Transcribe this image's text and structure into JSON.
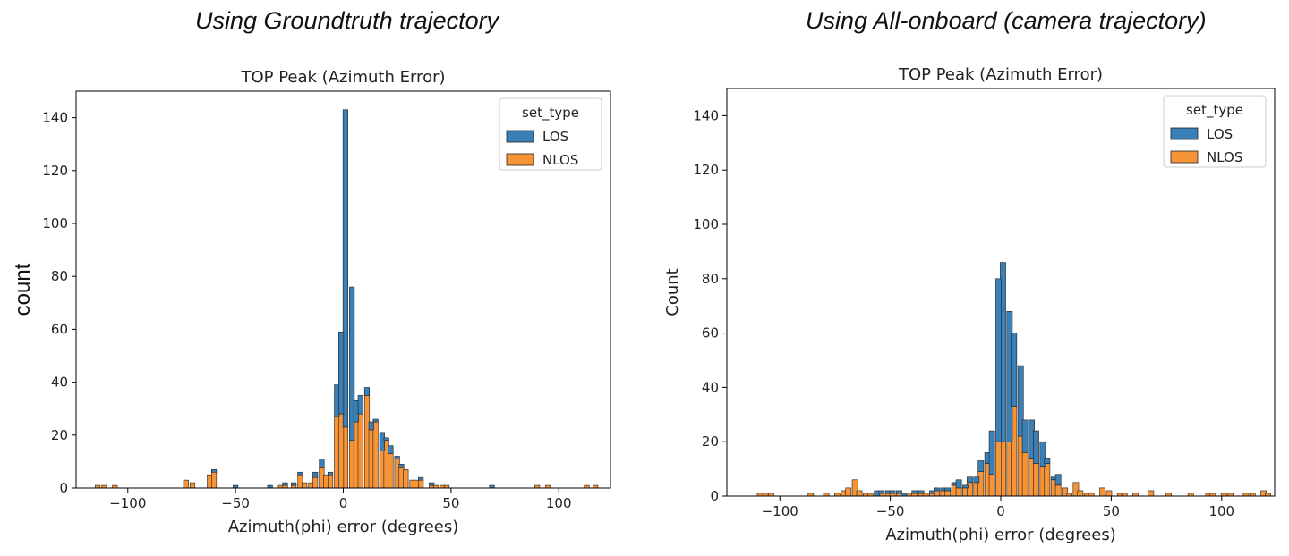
{
  "headings": {
    "left": "Using Groundtruth trajectory",
    "right": "Using All-onboard (camera trajectory)"
  },
  "outer_ylabel": "count",
  "colors": {
    "LOS": "#3a7fb6",
    "NLOS": "#f79437",
    "edge": "#222222"
  },
  "chart_data": [
    {
      "type": "bar",
      "stacking": "stacked histogram",
      "title": "TOP Peak (Azimuth Error)",
      "xlabel": "Azimuth(phi) error (degrees)",
      "ylabel": "",
      "xlim": [
        -124,
        124
      ],
      "ylim": [
        0,
        150
      ],
      "xticks": [
        -100,
        -50,
        0,
        50,
        100
      ],
      "xtick_labels": [
        "−100",
        "−50",
        "0",
        "50",
        "100"
      ],
      "yticks": [
        0,
        20,
        40,
        60,
        80,
        100,
        120,
        140
      ],
      "legend": {
        "title": "set_type",
        "entries": [
          "LOS",
          "NLOS"
        ],
        "placement": "top-right"
      },
      "bin_width": 2.3,
      "series": [
        {
          "name": "NLOS",
          "bins": [
            [
              -114,
              1
            ],
            [
              -111,
              1
            ],
            [
              -106,
              1
            ],
            [
              -73,
              3
            ],
            [
              -70,
              2
            ],
            [
              -62,
              5
            ],
            [
              -60,
              6
            ],
            [
              -29,
              1
            ],
            [
              -27,
              1
            ],
            [
              -23,
              1
            ],
            [
              -20,
              5
            ],
            [
              -18,
              2
            ],
            [
              -15,
              2
            ],
            [
              -13,
              4
            ],
            [
              -10,
              8
            ],
            [
              -8,
              5
            ],
            [
              -6,
              5
            ],
            [
              -3,
              27
            ],
            [
              -1,
              28
            ],
            [
              1,
              23
            ],
            [
              4,
              18
            ],
            [
              6,
              25
            ],
            [
              8,
              28
            ],
            [
              11,
              35
            ],
            [
              13,
              22
            ],
            [
              15,
              25
            ],
            [
              18,
              14
            ],
            [
              20,
              18
            ],
            [
              22,
              13
            ],
            [
              25,
              11
            ],
            [
              27,
              8
            ],
            [
              29,
              7
            ],
            [
              32,
              3
            ],
            [
              34,
              3
            ],
            [
              36,
              3
            ],
            [
              41,
              1
            ],
            [
              43,
              1
            ],
            [
              46,
              1
            ],
            [
              48,
              1
            ],
            [
              90,
              1
            ],
            [
              95,
              1
            ],
            [
              113,
              1
            ],
            [
              117,
              1
            ]
          ]
        },
        {
          "name": "LOS",
          "bins": [
            [
              -60,
              1
            ],
            [
              -50,
              1
            ],
            [
              -34,
              1
            ],
            [
              -27,
              1
            ],
            [
              -23,
              1
            ],
            [
              -20,
              1
            ],
            [
              -13,
              2
            ],
            [
              -10,
              3
            ],
            [
              -6,
              1
            ],
            [
              -3,
              12
            ],
            [
              -1,
              31
            ],
            [
              1,
              120
            ],
            [
              4,
              58
            ],
            [
              6,
              8
            ],
            [
              8,
              7
            ],
            [
              11,
              3
            ],
            [
              13,
              3
            ],
            [
              15,
              1
            ],
            [
              18,
              7
            ],
            [
              20,
              1
            ],
            [
              22,
              3
            ],
            [
              25,
              1
            ],
            [
              27,
              1
            ],
            [
              36,
              1
            ],
            [
              41,
              1
            ],
            [
              69,
              1
            ]
          ]
        }
      ]
    },
    {
      "type": "bar",
      "stacking": "stacked histogram",
      "title": "TOP Peak (Azimuth Error)",
      "xlabel": "Azimuth(phi) error (degrees)",
      "ylabel": "Count",
      "xlim": [
        -124,
        124
      ],
      "ylim": [
        0,
        150
      ],
      "xticks": [
        -100,
        -50,
        0,
        50,
        100
      ],
      "xtick_labels": [
        "−100",
        "−50",
        "0",
        "50",
        "100"
      ],
      "yticks": [
        0,
        20,
        40,
        60,
        80,
        100,
        120,
        140
      ],
      "legend": {
        "title": "set_type",
        "entries": [
          "LOS",
          "NLOS"
        ],
        "placement": "top-right"
      },
      "bin_width": 2.5,
      "series": [
        {
          "name": "NLOS",
          "bins": [
            [
              -109,
              1
            ],
            [
              -106,
              1
            ],
            [
              -104,
              1
            ],
            [
              -86,
              1
            ],
            [
              -79,
              1
            ],
            [
              -74,
              1
            ],
            [
              -71,
              2
            ],
            [
              -69,
              3
            ],
            [
              -66,
              6
            ],
            [
              -64,
              2
            ],
            [
              -61,
              1
            ],
            [
              -59,
              1
            ],
            [
              -54,
              1
            ],
            [
              -51,
              1
            ],
            [
              -49,
              1
            ],
            [
              -46,
              1
            ],
            [
              -41,
              1
            ],
            [
              -39,
              1
            ],
            [
              -36,
              1
            ],
            [
              -34,
              1
            ],
            [
              -31,
              1
            ],
            [
              -29,
              2
            ],
            [
              -26,
              2
            ],
            [
              -24,
              2
            ],
            [
              -21,
              4
            ],
            [
              -19,
              3
            ],
            [
              -16,
              3
            ],
            [
              -14,
              5
            ],
            [
              -11,
              5
            ],
            [
              -9,
              9
            ],
            [
              -6,
              12
            ],
            [
              -4,
              8
            ],
            [
              -1,
              20
            ],
            [
              1,
              20
            ],
            [
              4,
              20
            ],
            [
              6,
              33
            ],
            [
              9,
              22
            ],
            [
              11,
              16
            ],
            [
              14,
              14
            ],
            [
              16,
              12
            ],
            [
              19,
              11
            ],
            [
              21,
              12
            ],
            [
              24,
              6
            ],
            [
              26,
              4
            ],
            [
              29,
              3
            ],
            [
              31,
              1
            ],
            [
              34,
              5
            ],
            [
              36,
              2
            ],
            [
              39,
              1
            ],
            [
              41,
              1
            ],
            [
              46,
              3
            ],
            [
              49,
              2
            ],
            [
              54,
              1
            ],
            [
              56,
              1
            ],
            [
              61,
              1
            ],
            [
              68,
              2
            ],
            [
              76,
              1
            ],
            [
              86,
              1
            ],
            [
              94,
              1
            ],
            [
              96,
              1
            ],
            [
              101,
              1
            ],
            [
              104,
              1
            ],
            [
              111,
              1
            ],
            [
              114,
              1
            ],
            [
              119,
              2
            ],
            [
              121,
              1
            ]
          ]
        },
        {
          "name": "LOS",
          "bins": [
            [
              -56,
              2
            ],
            [
              -54,
              1
            ],
            [
              -51,
              1
            ],
            [
              -49,
              1
            ],
            [
              -46,
              1
            ],
            [
              -44,
              1
            ],
            [
              -39,
              1
            ],
            [
              -36,
              1
            ],
            [
              -31,
              1
            ],
            [
              -29,
              1
            ],
            [
              -26,
              1
            ],
            [
              -24,
              1
            ],
            [
              -21,
              1
            ],
            [
              -19,
              3
            ],
            [
              -16,
              1
            ],
            [
              -14,
              2
            ],
            [
              -11,
              2
            ],
            [
              -9,
              4
            ],
            [
              -6,
              4
            ],
            [
              -4,
              16
            ],
            [
              -1,
              60
            ],
            [
              1,
              66
            ],
            [
              4,
              48
            ],
            [
              6,
              27
            ],
            [
              9,
              26
            ],
            [
              11,
              12
            ],
            [
              14,
              14
            ],
            [
              16,
              12
            ],
            [
              19,
              9
            ],
            [
              21,
              2
            ],
            [
              24,
              1
            ],
            [
              26,
              4
            ]
          ]
        }
      ]
    }
  ]
}
